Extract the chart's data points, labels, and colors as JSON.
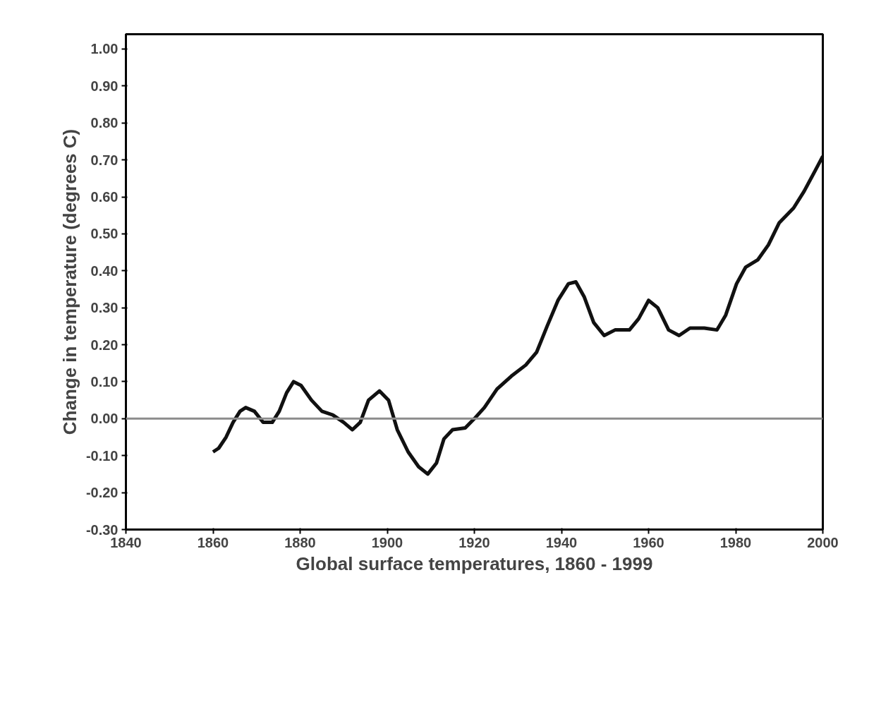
{
  "chart_data": {
    "type": "line",
    "xlabel": "Global surface temperatures, 1860 - 1999",
    "ylabel": "Change in temperature (degrees C)",
    "xlim": [
      1840,
      2000
    ],
    "xticks": [
      1840,
      1860,
      1880,
      1900,
      1920,
      1940,
      1960,
      1980,
      2000
    ],
    "ylim": [
      -0.3,
      1.04
    ],
    "yticks": [
      {
        "value": -0.3,
        "label": "-0.30"
      },
      {
        "value": -0.2,
        "label": "-0.20"
      },
      {
        "value": -0.1,
        "label": "-0.10"
      },
      {
        "value": 0,
        "label": "0.00"
      },
      {
        "value": 0.1,
        "label": "0.10"
      },
      {
        "value": 0.2,
        "label": "0.20"
      },
      {
        "value": 0.3,
        "label": "0.30"
      },
      {
        "value": 0.4,
        "label": "0.40"
      },
      {
        "value": 0.5,
        "label": "0.50"
      },
      {
        "value": 0.6,
        "label": "0.60"
      },
      {
        "value": 0.7,
        "label": "0.70"
      },
      {
        "value": 0.8,
        "label": "0.80"
      },
      {
        "value": 0.9,
        "label": "0.90"
      },
      {
        "value": 1.0,
        "label": "1.00"
      }
    ],
    "grid": false,
    "line_style": "solid",
    "marker": "none",
    "ref_lines": [
      {
        "axis": "y",
        "value": 0,
        "color": "#8c8c8c"
      }
    ],
    "series": [
      {
        "color": "#111111",
        "x": [
          1860,
          1861.3,
          1863,
          1864.6,
          1866.2,
          1867.5,
          1869.5,
          1871.5,
          1873.6,
          1875.2,
          1876.9,
          1878.5,
          1880.2,
          1882.6,
          1885,
          1887.5,
          1890,
          1892,
          1893.8,
          1895.7,
          1898.2,
          1900.3,
          1902.3,
          1904.8,
          1907.2,
          1909.3,
          1911.3,
          1913,
          1915,
          1917.9,
          1920,
          1922.3,
          1925.2,
          1928.5,
          1931.8,
          1934.3,
          1936.7,
          1939.2,
          1941.6,
          1943.3,
          1945.2,
          1947.4,
          1949.8,
          1952.3,
          1955.6,
          1957.7,
          1960,
          1962.1,
          1964.6,
          1967,
          1969.5,
          1972.8,
          1975.7,
          1977.7,
          1980.2,
          1982.3,
          1985.1,
          1987.5,
          1990,
          1993.3,
          1995.7,
          1998.2,
          2000
        ],
        "values": [
          -0.09,
          -0.08,
          -0.05,
          -0.01,
          0.02,
          0.03,
          0.02,
          -0.01,
          -0.01,
          0.02,
          0.07,
          0.1,
          0.09,
          0.05,
          0.02,
          0.01,
          -0.01,
          -0.03,
          -0.01,
          0.05,
          0.075,
          0.05,
          -0.03,
          -0.09,
          -0.13,
          -0.15,
          -0.12,
          -0.055,
          -0.03,
          -0.025,
          0.0,
          0.03,
          0.08,
          0.115,
          0.145,
          0.18,
          0.25,
          0.32,
          0.365,
          0.37,
          0.33,
          0.26,
          0.225,
          0.24,
          0.24,
          0.27,
          0.32,
          0.3,
          0.24,
          0.225,
          0.245,
          0.245,
          0.24,
          0.28,
          0.365,
          0.41,
          0.43,
          0.47,
          0.53,
          0.57,
          0.615,
          0.67,
          0.71
        ]
      }
    ]
  }
}
